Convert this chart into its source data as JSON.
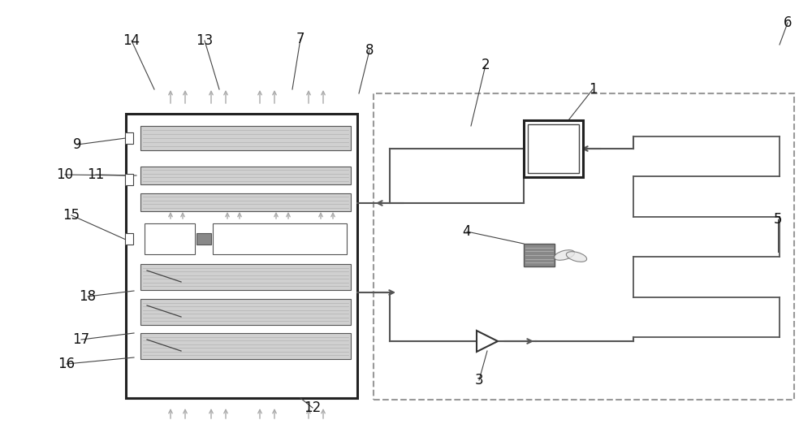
{
  "bg_color": "#ffffff",
  "lc": "#555555",
  "dc": "#999999",
  "lgf": "#d0d0d0",
  "dg": "#888888",
  "figsize": [
    10.0,
    5.33
  ],
  "dpi": 100
}
